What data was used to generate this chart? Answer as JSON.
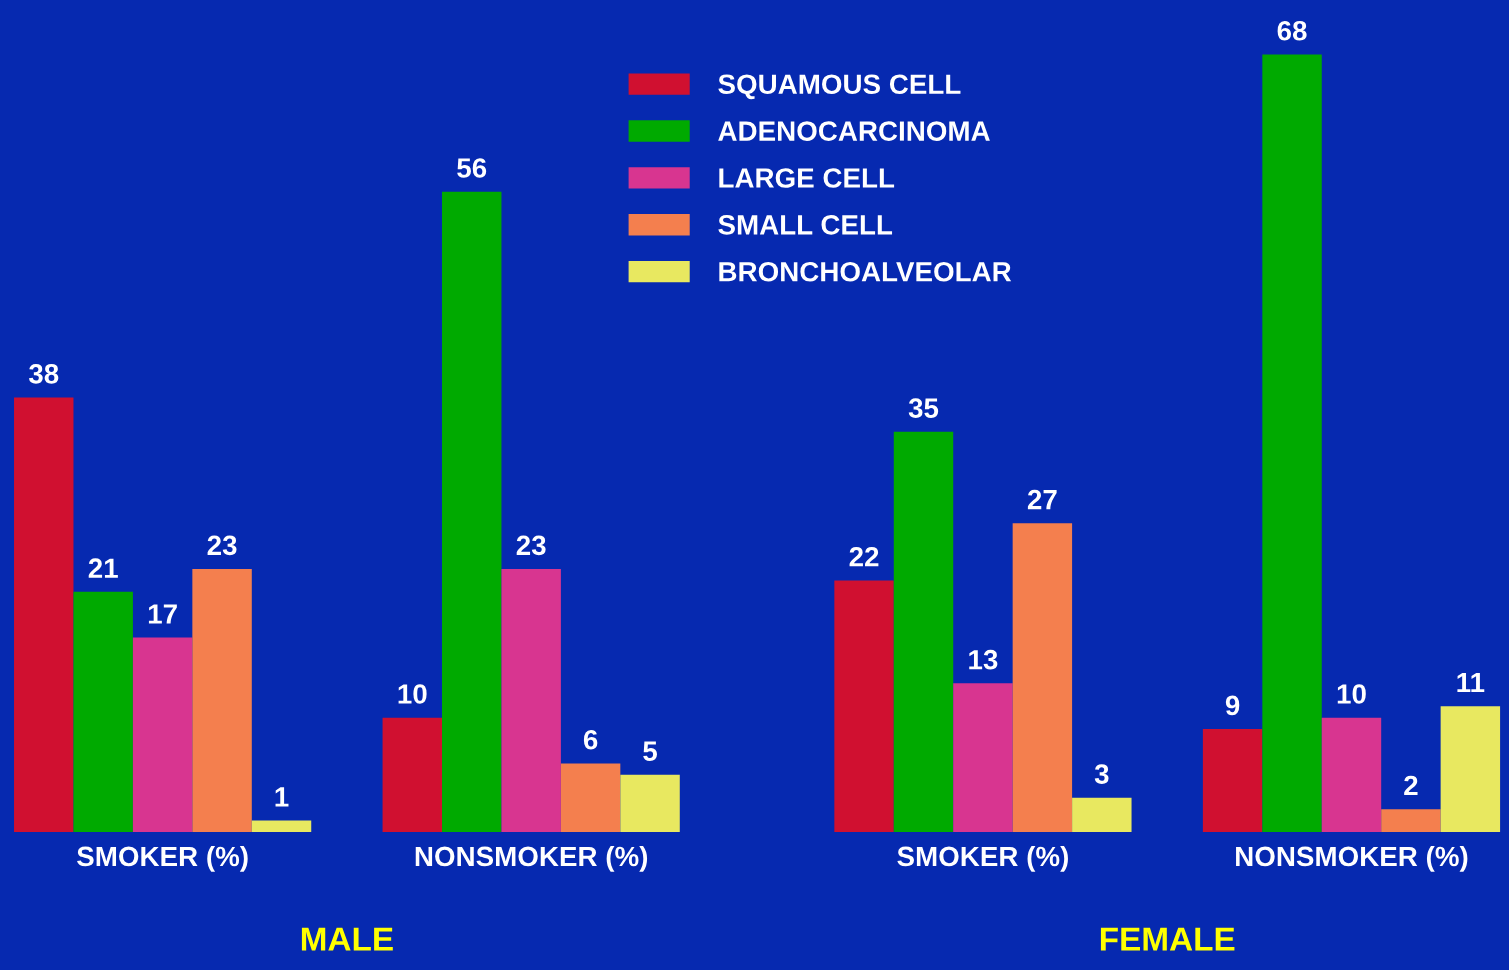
{
  "chart_data": {
    "type": "bar",
    "categories": [
      "SMOKER (%)",
      "NONSMOKER (%)",
      "SMOKER (%)",
      "NONSMOKER (%)"
    ],
    "series": [
      {
        "name": "SQUAMOUS CELL",
        "color": "#d01030",
        "values": [
          38,
          10,
          22,
          9
        ]
      },
      {
        "name": "ADENOCARCINOMA",
        "color": "#00aa00",
        "values": [
          21,
          56,
          35,
          68
        ]
      },
      {
        "name": "LARGE CELL",
        "color": "#d83590",
        "values": [
          17,
          23,
          13,
          10
        ]
      },
      {
        "name": "SMALL CELL",
        "color": "#f47f4e",
        "values": [
          23,
          6,
          27,
          2
        ]
      },
      {
        "name": "BRONCHOALVEOLAR",
        "color": "#e8e860",
        "values": [
          1,
          5,
          3,
          11
        ]
      }
    ],
    "data_labels": true,
    "legend": "top",
    "grid": false,
    "annotations": [
      "MALE",
      "FEMALE"
    ]
  }
}
